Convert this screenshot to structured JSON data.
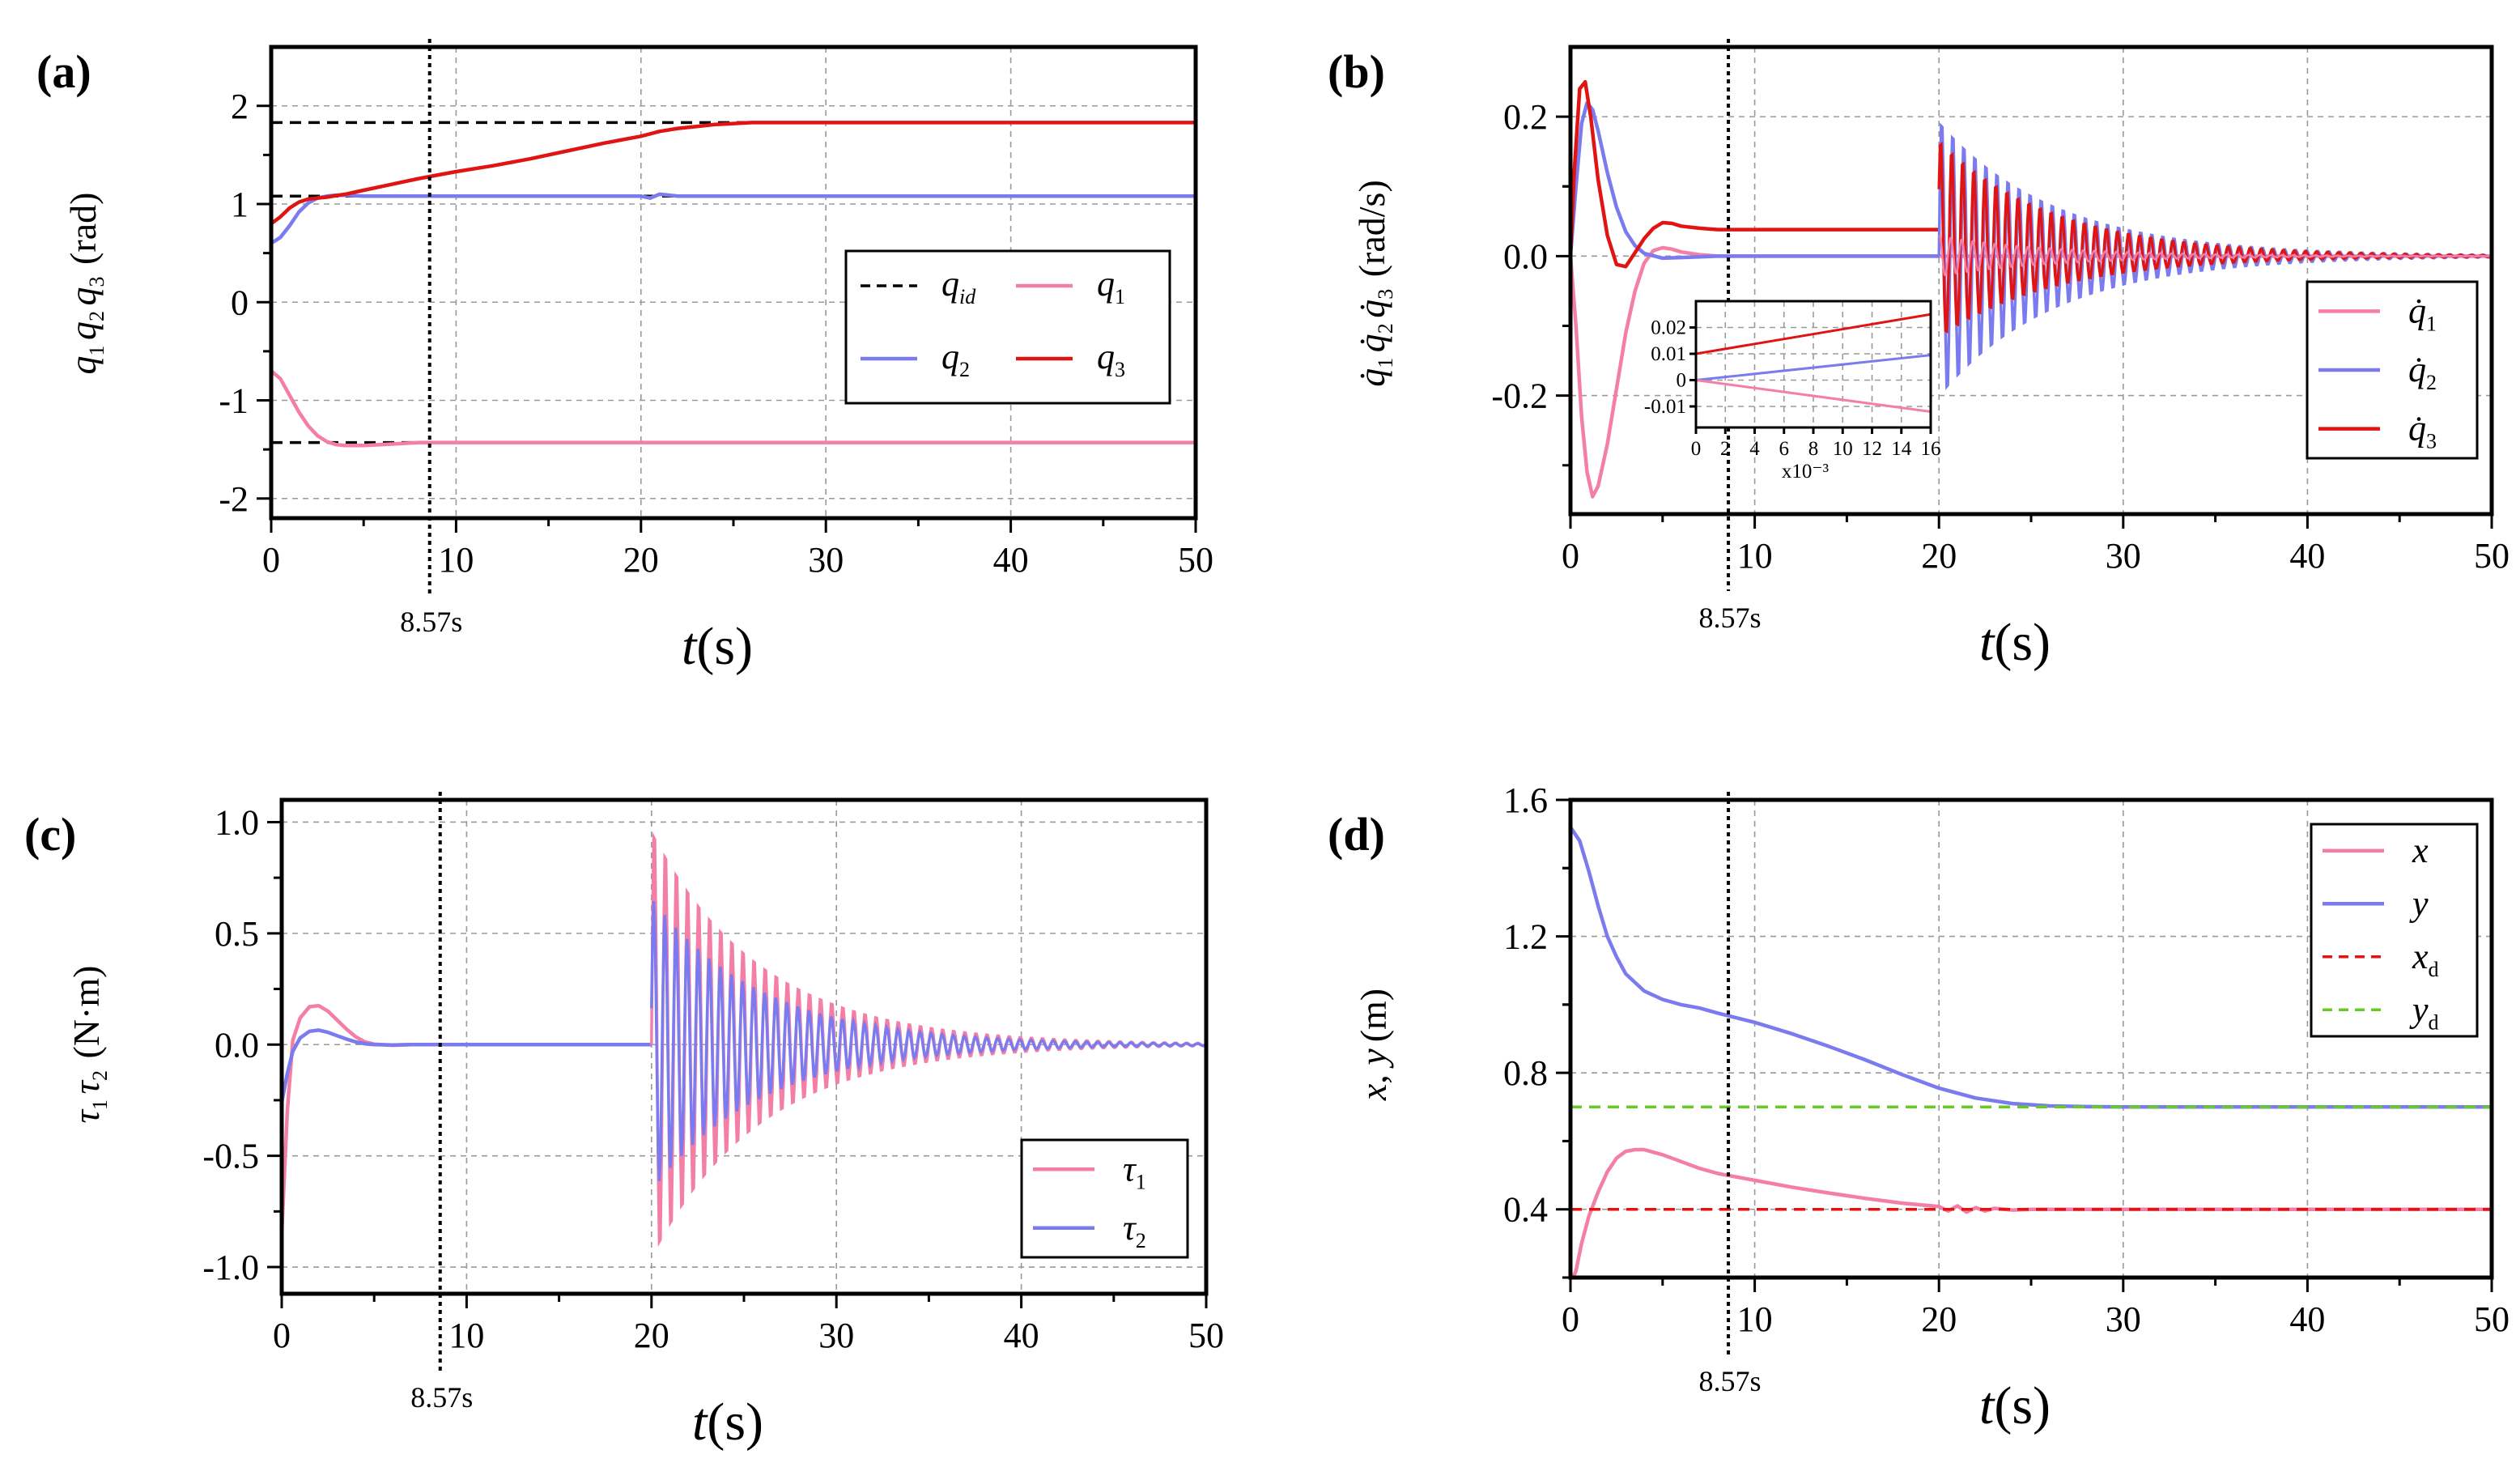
{
  "colors": {
    "pink": "#f47fa6",
    "blue": "#7b7bef",
    "red": "#e11414",
    "green": "#66cc22",
    "black": "#000000"
  },
  "chart_data": [
    {
      "id": "a",
      "type": "line",
      "panel_label": "(a)",
      "annotation": "8.57s",
      "vline_x": 8.57,
      "xlim": [
        0,
        50
      ],
      "ylim": [
        -2.2,
        2.6
      ],
      "xticks": [
        0,
        10,
        20,
        30,
        40,
        50
      ],
      "xtick_labels": [
        "0",
        "10",
        "20",
        "30",
        "40",
        "50"
      ],
      "yticks": [
        -2,
        -1,
        0,
        1,
        2
      ],
      "ytick_labels": [
        "-2",
        "-1",
        "0",
        "1",
        "2"
      ],
      "xlabel": {
        "var": "t",
        "unit": "(s)"
      },
      "ylabel": {
        "vars": [
          "q",
          "q",
          "q"
        ],
        "subs": [
          "1",
          "2",
          "3"
        ],
        "unit": "(rad)"
      },
      "legend_position": "right",
      "series": [
        {
          "key": "qid1",
          "legend": "",
          "sub": "",
          "color": "#000000",
          "dash": true,
          "x": [
            0,
            50
          ],
          "y": [
            1.83,
            1.83
          ]
        },
        {
          "key": "qid2",
          "legend": "q",
          "sub": "id",
          "color": "#000000",
          "dash": true,
          "x": [
            0,
            50
          ],
          "y": [
            1.08,
            1.08
          ]
        },
        {
          "key": "qid3",
          "legend": "",
          "sub": "",
          "color": "#000000",
          "dash": true,
          "x": [
            0,
            50
          ],
          "y": [
            -1.43,
            -1.43
          ]
        },
        {
          "key": "q1",
          "legend": "q",
          "sub": "1",
          "color": "#f47fa6",
          "x": [
            0,
            0.5,
            1,
            1.5,
            2,
            2.5,
            3,
            3.5,
            4,
            5,
            6,
            7,
            8,
            10,
            15,
            20,
            30,
            40,
            50
          ],
          "y": [
            -0.7,
            -0.78,
            -0.95,
            -1.12,
            -1.26,
            -1.36,
            -1.42,
            -1.45,
            -1.46,
            -1.46,
            -1.45,
            -1.44,
            -1.43,
            -1.43,
            -1.43,
            -1.43,
            -1.43,
            -1.43,
            -1.43
          ]
        },
        {
          "key": "q2",
          "legend": "q",
          "sub": "2",
          "color": "#7b7bef",
          "x": [
            0,
            0.5,
            1,
            1.5,
            2,
            2.5,
            3,
            3.5,
            4,
            5,
            6,
            8,
            10,
            20,
            20.5,
            21,
            22,
            30,
            40,
            50
          ],
          "y": [
            0.6,
            0.66,
            0.78,
            0.92,
            1.01,
            1.06,
            1.08,
            1.09,
            1.09,
            1.08,
            1.08,
            1.08,
            1.08,
            1.08,
            1.06,
            1.1,
            1.08,
            1.08,
            1.08,
            1.08
          ]
        },
        {
          "key": "q3",
          "legend": "q",
          "sub": "3",
          "color": "#e11414",
          "x": [
            0,
            0.5,
            1,
            1.5,
            2,
            3,
            4,
            5,
            6,
            8,
            10,
            12,
            14,
            16,
            18,
            20,
            21,
            22,
            23,
            24,
            25,
            26,
            27,
            28,
            30,
            40,
            50
          ],
          "y": [
            0.8,
            0.87,
            0.96,
            1.02,
            1.05,
            1.07,
            1.1,
            1.14,
            1.18,
            1.26,
            1.33,
            1.39,
            1.46,
            1.54,
            1.62,
            1.69,
            1.74,
            1.77,
            1.79,
            1.81,
            1.82,
            1.83,
            1.83,
            1.83,
            1.83,
            1.83,
            1.83
          ]
        }
      ]
    },
    {
      "id": "b",
      "type": "line",
      "panel_label": "(b)",
      "annotation": "8.57s",
      "vline_x": 8.57,
      "xlim": [
        0,
        50
      ],
      "ylim": [
        -0.37,
        0.3
      ],
      "xticks": [
        0,
        10,
        20,
        30,
        40,
        50
      ],
      "xtick_labels": [
        "0",
        "10",
        "20",
        "30",
        "40",
        "50"
      ],
      "yticks": [
        -0.2,
        0,
        0.2
      ],
      "ytick_labels": [
        "-0.2",
        "0.0",
        "0.2"
      ],
      "xlabel": {
        "var": "t",
        "unit": "(s)"
      },
      "ylabel": {
        "vars": [
          "q̇",
          "q̇",
          "q̇"
        ],
        "subs": [
          "1",
          "2",
          "3"
        ],
        "unit": "(rad/s)"
      },
      "legend_position": "right",
      "series": [
        {
          "key": "dq1",
          "legend": "q̇",
          "sub": "1",
          "color": "#f47fa6",
          "x": [
            0,
            0.3,
            0.6,
            0.9,
            1.2,
            1.5,
            2,
            2.5,
            3,
            3.5,
            4,
            4.5,
            5,
            5.5,
            6,
            7,
            8,
            10,
            20,
            30,
            40,
            50
          ],
          "y": [
            0,
            -0.1,
            -0.23,
            -0.31,
            -0.345,
            -0.33,
            -0.27,
            -0.19,
            -0.11,
            -0.05,
            -0.01,
            0.008,
            0.012,
            0.01,
            0.006,
            0.002,
            0,
            0,
            0,
            0,
            0,
            0
          ]
        },
        {
          "key": "dq2",
          "legend": "q̇",
          "sub": "2",
          "color": "#7b7bef",
          "x": [
            0,
            0.3,
            0.6,
            0.9,
            1.2,
            1.5,
            2,
            2.5,
            3,
            3.5,
            4,
            5,
            6,
            8,
            10,
            20
          ],
          "y": [
            0,
            0.1,
            0.19,
            0.22,
            0.21,
            0.18,
            0.12,
            0.07,
            0.035,
            0.015,
            0.004,
            -0.003,
            -0.002,
            0,
            0,
            0
          ]
        },
        {
          "key": "dq3",
          "legend": "q̇",
          "sub": "3",
          "color": "#e11414",
          "x": [
            0,
            0.2,
            0.5,
            0.8,
            1.1,
            1.5,
            2,
            2.5,
            3,
            3.5,
            4,
            4.5,
            5,
            5.5,
            6,
            7,
            8,
            10,
            20
          ],
          "y": [
            0,
            0.12,
            0.24,
            0.25,
            0.2,
            0.11,
            0.03,
            -0.012,
            -0.015,
            0.005,
            0.025,
            0.04,
            0.048,
            0.047,
            0.043,
            0.04,
            0.038,
            0.038,
            0.038
          ]
        }
      ],
      "oscillation": {
        "t_start": 20,
        "t_end": 50,
        "period": 0.6,
        "blue_amp_pos": 0.2,
        "blue_amp_neg": 0.21,
        "red_amp_pos": 0.17,
        "red_amp_neg": 0.12,
        "decay": 0.16
      },
      "inset": {
        "xlim": [
          0,
          16
        ],
        "ylim": [
          -0.018,
          0.03
        ],
        "xticks": [
          0,
          2,
          4,
          6,
          8,
          10,
          12,
          14,
          16
        ],
        "xtick_labels": [
          "0",
          "2",
          "4",
          "6",
          "8",
          "10",
          "12",
          "14",
          "16"
        ],
        "yticks": [
          -0.01,
          0,
          0.01,
          0.02
        ],
        "ytick_labels": [
          "-0.01",
          "0",
          "0.01",
          "0.02"
        ],
        "xunit": "x10⁻³",
        "series": [
          {
            "color": "#e11414",
            "x": [
              0,
              16
            ],
            "y": [
              0.01,
              0.025
            ]
          },
          {
            "color": "#7b7bef",
            "x": [
              0,
              16
            ],
            "y": [
              0,
              0.0095
            ]
          },
          {
            "color": "#f47fa6",
            "x": [
              0,
              16
            ],
            "y": [
              0,
              -0.012
            ]
          }
        ]
      }
    },
    {
      "id": "c",
      "type": "line",
      "panel_label": "(c)",
      "annotation": "8.57s",
      "vline_x": 8.57,
      "xlim": [
        0,
        50
      ],
      "ylim": [
        -1.12,
        1.1
      ],
      "xticks": [
        0,
        10,
        20,
        30,
        40,
        50
      ],
      "xtick_labels": [
        "0",
        "10",
        "20",
        "30",
        "40",
        "50"
      ],
      "yticks": [
        -1,
        -0.5,
        0,
        0.5,
        1
      ],
      "ytick_labels": [
        "-1.0",
        "-0.5",
        "0.0",
        "0.5",
        "1.0"
      ],
      "xlabel": {
        "var": "t",
        "unit": "(s)"
      },
      "ylabel": {
        "vars": [
          "τ",
          "τ"
        ],
        "subs": [
          "1",
          "2"
        ],
        "unit": "(N·m)"
      },
      "legend_position": "bottom-right",
      "series": [
        {
          "key": "tau1",
          "legend": "τ",
          "sub": "1",
          "color": "#f47fa6",
          "x": [
            0,
            0.3,
            0.6,
            1,
            1.5,
            2,
            2.5,
            3,
            3.5,
            4,
            4.5,
            5,
            6,
            7,
            10,
            20
          ],
          "y": [
            -0.85,
            -0.3,
            0.02,
            0.12,
            0.17,
            0.175,
            0.15,
            0.11,
            0.07,
            0.035,
            0.012,
            0.002,
            -0.003,
            0,
            0,
            0
          ]
        },
        {
          "key": "tau2",
          "legend": "τ",
          "sub": "2",
          "color": "#7b7bef",
          "x": [
            0,
            0.3,
            0.6,
            1,
            1.5,
            2,
            2.5,
            3,
            3.5,
            4,
            4.5,
            5,
            6,
            7,
            10,
            20
          ],
          "y": [
            -0.26,
            -0.13,
            -0.03,
            0.03,
            0.06,
            0.065,
            0.055,
            0.04,
            0.025,
            0.012,
            0.004,
            0,
            -0.002,
            0,
            0,
            0
          ]
        }
      ],
      "oscillation": {
        "t_start": 20,
        "t_end": 50,
        "period": 0.6,
        "pink_amp_pos": 1.0,
        "pink_amp_neg": 1.0,
        "blue_amp_pos": 0.66,
        "blue_amp_neg": 0.66,
        "decay": 0.17
      }
    },
    {
      "id": "d",
      "type": "line",
      "panel_label": "(d)",
      "annotation": "8.57s",
      "vline_x": 8.57,
      "xlim": [
        0,
        50
      ],
      "ylim": [
        0.2,
        1.6
      ],
      "xticks": [
        0,
        10,
        20,
        30,
        40,
        50
      ],
      "xtick_labels": [
        "0",
        "10",
        "20",
        "30",
        "40",
        "50"
      ],
      "yticks": [
        0.4,
        0.8,
        1.2,
        1.6
      ],
      "ytick_labels": [
        "0.4",
        "0.8",
        "1.2",
        "1.6"
      ],
      "xlabel": {
        "var": "t",
        "unit": "(s)"
      },
      "ylabel": {
        "vars": [
          "x",
          "y"
        ],
        "subs": [
          "",
          ""
        ],
        "unit": "(m)"
      },
      "legend_position": "top-right",
      "series": [
        {
          "key": "x",
          "legend": "x",
          "sub": "",
          "color": "#f47fa6",
          "x": [
            0,
            0.3,
            0.6,
            1,
            1.5,
            2,
            2.5,
            3,
            3.5,
            4,
            5,
            6,
            7,
            8,
            10,
            12,
            14,
            16,
            18,
            20,
            20.5,
            21,
            21.5,
            22,
            22.5,
            23,
            24,
            25,
            30,
            40,
            50
          ],
          "y": [
            0.18,
            0.22,
            0.3,
            0.38,
            0.45,
            0.51,
            0.55,
            0.57,
            0.575,
            0.575,
            0.56,
            0.54,
            0.52,
            0.505,
            0.485,
            0.465,
            0.448,
            0.432,
            0.418,
            0.408,
            0.395,
            0.41,
            0.392,
            0.405,
            0.395,
            0.403,
            0.398,
            0.4,
            0.4,
            0.4,
            0.4
          ]
        },
        {
          "key": "y",
          "legend": "y",
          "sub": "",
          "color": "#7b7bef",
          "x": [
            0,
            0.5,
            1,
            1.5,
            2,
            2.5,
            3,
            4,
            5,
            6,
            7,
            8,
            10,
            12,
            14,
            16,
            18,
            20,
            22,
            24,
            26,
            28,
            30,
            40,
            50
          ],
          "y": [
            1.52,
            1.48,
            1.39,
            1.29,
            1.2,
            1.14,
            1.09,
            1.04,
            1.015,
            1.0,
            0.99,
            0.975,
            0.948,
            0.915,
            0.878,
            0.838,
            0.795,
            0.755,
            0.726,
            0.71,
            0.703,
            0.701,
            0.7,
            0.7,
            0.7
          ]
        },
        {
          "key": "xd",
          "legend": "x",
          "sub": "d",
          "color": "#e11414",
          "dash": true,
          "x": [
            0,
            50
          ],
          "y": [
            0.4,
            0.4
          ]
        },
        {
          "key": "yd",
          "legend": "y",
          "sub": "d",
          "color": "#66cc22",
          "dash": true,
          "x": [
            0,
            50
          ],
          "y": [
            0.7,
            0.7
          ]
        }
      ]
    }
  ]
}
